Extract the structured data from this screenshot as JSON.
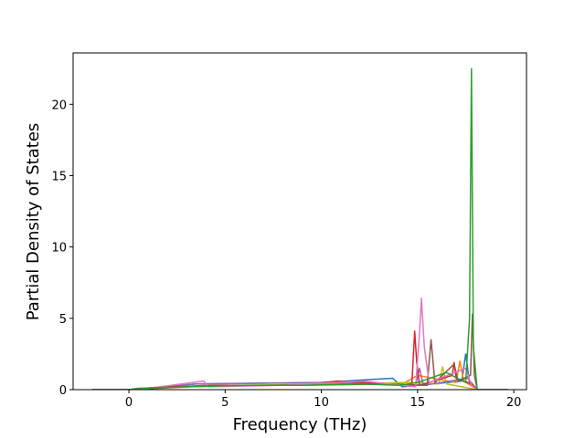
{
  "chart_data": {
    "type": "line",
    "xlabel": "Frequency (THz)",
    "ylabel": "Partial Density of States",
    "xlim": [
      -2.9,
      20.66
    ],
    "ylim": [
      0,
      23.6
    ],
    "xticks": [
      0,
      5,
      10,
      15,
      20
    ],
    "yticks": [
      0,
      5,
      10,
      15,
      20
    ],
    "grid": false,
    "series": [
      {
        "color": "#1f77b4",
        "x": [
          -1.9,
          0,
          3.5,
          10,
          13.7,
          14.2,
          17.3,
          17.5,
          17.7,
          18.1,
          19.7
        ],
        "values": [
          0,
          0,
          0.4,
          0.5,
          0.8,
          0.2,
          0.6,
          2.5,
          0.5,
          0,
          0
        ]
      },
      {
        "color": "#ff7f0e",
        "x": [
          -1.9,
          0,
          4,
          9,
          14.2,
          15,
          17,
          17.2,
          17.4,
          18.1,
          19.7
        ],
        "values": [
          0,
          0,
          0.3,
          0.3,
          0.4,
          1,
          0.5,
          2,
          0.6,
          0,
          0
        ]
      },
      {
        "color": "#bcbd22",
        "x": [
          -1.9,
          0,
          5,
          11,
          14.5,
          16.1,
          16.3,
          16.5,
          18.1,
          19.7
        ],
        "values": [
          0,
          0,
          0.3,
          0.4,
          0.5,
          0.4,
          1.6,
          0.4,
          0,
          0
        ]
      },
      {
        "color": "#9467bd",
        "x": [
          -1.9,
          0,
          3.5,
          10.2,
          14.9,
          15.1,
          15.3,
          17.6,
          18.1,
          19.7
        ],
        "values": [
          0,
          0,
          0.4,
          0.5,
          0.3,
          1.5,
          0.3,
          0.8,
          0,
          0
        ]
      },
      {
        "color": "#d62728",
        "x": [
          -1.9,
          0,
          2,
          5,
          9,
          10.8,
          14.7,
          14.85,
          14.95,
          15.1,
          16.8,
          16.9,
          17,
          17.8,
          18.1,
          19.7
        ],
        "values": [
          0,
          0,
          0.2,
          0.3,
          0.3,
          0.6,
          0.3,
          4.1,
          2,
          0.3,
          1,
          1.9,
          0.8,
          0.4,
          0,
          0
        ]
      },
      {
        "color": "#8c564b",
        "x": [
          -1.9,
          0,
          3,
          7,
          13.5,
          15.5,
          15.7,
          15.9,
          16.9,
          17.1,
          17.75,
          17.85,
          17.95,
          18.1,
          19.7
        ],
        "values": [
          0,
          0,
          0.2,
          0.3,
          0.4,
          0.3,
          3.5,
          0.5,
          1.8,
          0.6,
          1,
          5.3,
          1,
          0,
          0
        ]
      },
      {
        "color": "#e377c2",
        "x": [
          -1.9,
          0,
          1,
          3.9,
          4.1,
          8,
          12.2,
          14.9,
          15.1,
          15.2,
          15.35,
          15.6,
          17.5,
          17.8,
          18.1,
          19.7
        ],
        "values": [
          0,
          0,
          0.1,
          0.6,
          0.2,
          0.3,
          0.6,
          0.2,
          4,
          6.4,
          3,
          0.5,
          1.5,
          0.3,
          0,
          0
        ]
      },
      {
        "color": "#2ca02c",
        "x": [
          -1.9,
          0,
          0.5,
          3,
          6,
          9,
          12,
          14,
          15,
          16.5,
          17.5,
          17.7,
          17.8,
          17.9,
          18.1,
          19.7
        ],
        "values": [
          0,
          0,
          0.1,
          0.2,
          0.3,
          0.3,
          0.4,
          0.3,
          0.5,
          1.2,
          0.5,
          5,
          22.5,
          3,
          0,
          0
        ]
      }
    ]
  }
}
